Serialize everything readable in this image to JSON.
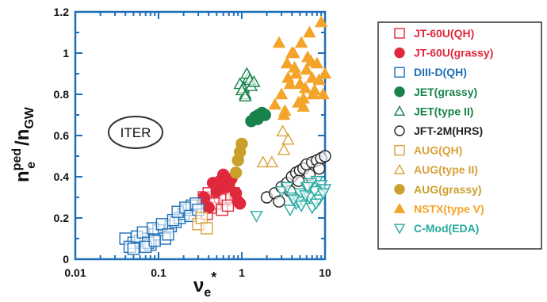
{
  "chart_data": {
    "type": "scatter",
    "x_scale": "log",
    "xlim": [
      0.01,
      10
    ],
    "ylim": [
      0,
      1.2
    ],
    "x_ticks": [
      "0.01",
      "0.1",
      "1",
      "10"
    ],
    "y_ticks": [
      "0",
      "0.2",
      "0.4",
      "0.6",
      "0.8",
      "1",
      "1.2"
    ],
    "ylabel": {
      "base": "n",
      "sup": "ped",
      "sub": "e",
      "div": "/n",
      "sub2": "GW"
    },
    "xlabel": {
      "base": "ν",
      "sub": "e",
      "sup": "*"
    },
    "annotation": "ITER",
    "legend_position": "right",
    "series": [
      {
        "name": "JT-60U(QH)",
        "marker": "square",
        "filled": false,
        "color": "#e0283c",
        "x": [
          0.35,
          0.4,
          0.45,
          0.5,
          0.55,
          0.6,
          0.7,
          0.8,
          0.42,
          0.48,
          0.62,
          0.75,
          0.52,
          0.58,
          0.68,
          0.38
        ],
        "y": [
          0.3,
          0.32,
          0.28,
          0.33,
          0.3,
          0.35,
          0.34,
          0.32,
          0.25,
          0.27,
          0.29,
          0.3,
          0.36,
          0.24,
          0.26,
          0.22
        ]
      },
      {
        "name": "JT-60U(grassy)",
        "marker": "circle",
        "filled": true,
        "color": "#e0283c",
        "x": [
          0.35,
          0.45,
          0.55,
          0.6,
          0.65,
          0.75,
          0.85,
          0.9,
          0.5,
          0.7,
          0.95,
          0.4
        ],
        "y": [
          0.3,
          0.37,
          0.38,
          0.41,
          0.35,
          0.39,
          0.32,
          0.28,
          0.33,
          0.36,
          0.27,
          0.25
        ]
      },
      {
        "name": "DIII-D(QH)",
        "marker": "square",
        "filled": false,
        "color": "#1f6fb8",
        "x": [
          0.04,
          0.05,
          0.06,
          0.07,
          0.08,
          0.09,
          0.1,
          0.12,
          0.14,
          0.16,
          0.18,
          0.2,
          0.22,
          0.25,
          0.045,
          0.055,
          0.065,
          0.075,
          0.085,
          0.11,
          0.13,
          0.15,
          0.17,
          0.21,
          0.24,
          0.28,
          0.3,
          0.05,
          0.07,
          0.09
        ],
        "y": [
          0.1,
          0.08,
          0.09,
          0.1,
          0.07,
          0.12,
          0.14,
          0.1,
          0.16,
          0.18,
          0.2,
          0.22,
          0.24,
          0.26,
          0.06,
          0.11,
          0.13,
          0.08,
          0.15,
          0.17,
          0.12,
          0.19,
          0.23,
          0.25,
          0.21,
          0.27,
          0.24,
          0.05,
          0.06,
          0.09
        ]
      },
      {
        "name": "JET(grassy)",
        "marker": "circle",
        "filled": true,
        "color": "#17824a",
        "x": [
          1.3,
          1.45,
          1.6,
          1.75,
          1.9,
          1.55
        ],
        "y": [
          0.67,
          0.69,
          0.7,
          0.71,
          0.7,
          0.68
        ]
      },
      {
        "name": "JET(type II)",
        "marker": "triangle",
        "filled": false,
        "color": "#17824a",
        "x": [
          0.95,
          1.05,
          1.1,
          1.2,
          1.3,
          1.15,
          1.0,
          1.25,
          1.4,
          1.1
        ],
        "y": [
          0.85,
          0.83,
          0.8,
          0.88,
          0.84,
          0.9,
          0.82,
          0.87,
          0.86,
          0.79
        ]
      },
      {
        "name": "JFT-2M(HRS)",
        "marker": "circle",
        "filled": false,
        "color": "#222222",
        "x": [
          2.0,
          2.5,
          3.0,
          3.5,
          4.0,
          4.5,
          5.0,
          5.5,
          6.0,
          7.0,
          8.0,
          9.0,
          10.0,
          2.8,
          3.8,
          4.8,
          6.5,
          8.5
        ],
        "y": [
          0.3,
          0.32,
          0.35,
          0.37,
          0.4,
          0.42,
          0.43,
          0.44,
          0.46,
          0.47,
          0.48,
          0.49,
          0.5,
          0.28,
          0.33,
          0.38,
          0.41,
          0.44
        ]
      },
      {
        "name": "AUG(QH)",
        "marker": "square",
        "filled": false,
        "color": "#d9a13a",
        "x": [
          0.3,
          0.33,
          0.38
        ],
        "y": [
          0.17,
          0.2,
          0.15
        ]
      },
      {
        "name": "AUG(type II)",
        "marker": "triangle",
        "filled": false,
        "color": "#d9a13a",
        "x": [
          1.8,
          2.3,
          3.2,
          3.6,
          3.1
        ],
        "y": [
          0.47,
          0.47,
          0.53,
          0.58,
          0.62
        ]
      },
      {
        "name": "AUG(grassy)",
        "marker": "circle",
        "filled": true,
        "color": "#c9a02a",
        "x": [
          0.85,
          0.9,
          0.95,
          1.0
        ],
        "y": [
          0.42,
          0.48,
          0.52,
          0.56
        ]
      },
      {
        "name": "NSTX(type V)",
        "marker": "triangle",
        "filled": true,
        "color": "#f5a42a",
        "x": [
          2.5,
          3.0,
          3.5,
          4.0,
          4.5,
          5.0,
          5.5,
          6.0,
          6.5,
          7.0,
          7.5,
          8.0,
          9.0,
          10.0,
          3.2,
          3.8,
          4.3,
          5.2,
          6.2,
          7.2,
          8.5,
          2.8,
          3.3,
          4.8,
          5.8,
          6.8,
          9.5,
          3.6,
          4.2,
          5.5
        ],
        "y": [
          0.75,
          0.8,
          0.95,
          1.0,
          0.9,
          0.85,
          0.78,
          0.92,
          1.1,
          0.88,
          0.82,
          0.95,
          1.15,
          0.9,
          0.7,
          0.85,
          0.93,
          1.05,
          0.98,
          0.8,
          0.87,
          1.05,
          0.72,
          0.76,
          0.83,
          0.96,
          0.8,
          0.88,
          1.0,
          0.74
        ]
      },
      {
        "name": "C-Mod(EDA)",
        "marker": "triangle-down",
        "filled": false,
        "color": "#27aaa0",
        "x": [
          1.5,
          3.0,
          3.5,
          4.0,
          4.5,
          5.0,
          5.5,
          6.0,
          6.5,
          7.0,
          7.5,
          8.0,
          8.5,
          9.0,
          10.0,
          3.8,
          4.8,
          5.8,
          6.8,
          7.8,
          9.5,
          4.2,
          5.2,
          6.2
        ],
        "y": [
          0.21,
          0.33,
          0.35,
          0.3,
          0.27,
          0.32,
          0.28,
          0.35,
          0.3,
          0.25,
          0.33,
          0.38,
          0.29,
          0.36,
          0.34,
          0.24,
          0.28,
          0.31,
          0.37,
          0.27,
          0.32,
          0.29,
          0.26,
          0.35
        ]
      }
    ]
  }
}
